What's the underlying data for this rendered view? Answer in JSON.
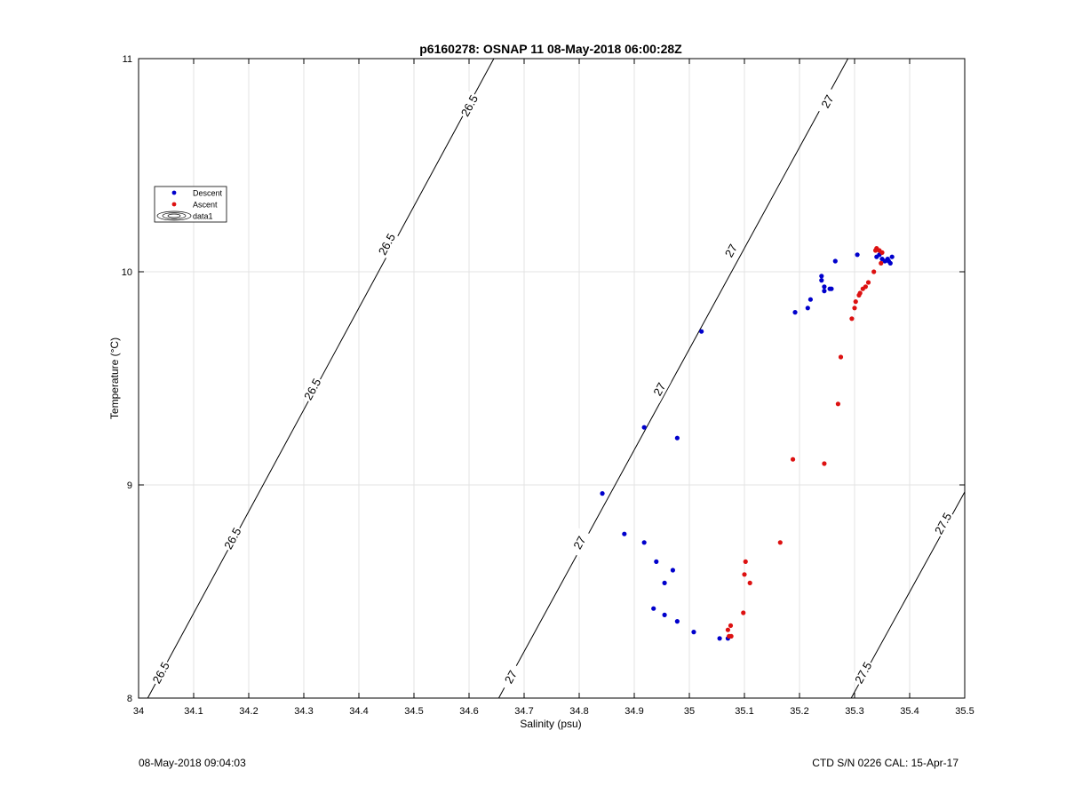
{
  "chart_data": {
    "type": "scatter",
    "title": "p6160278: OSNAP 11 08-May-2018 06:00:28Z",
    "xlabel": "Salinity (psu)",
    "ylabel": "Temperature (°C)",
    "xlim": [
      34,
      35.5
    ],
    "ylim": [
      8,
      11
    ],
    "xticks": [
      "34",
      "34.1",
      "34.2",
      "34.3",
      "34.4",
      "34.5",
      "34.6",
      "34.7",
      "34.8",
      "34.9",
      "35",
      "35.1",
      "35.2",
      "35.3",
      "35.4",
      "35.5"
    ],
    "yticks": [
      "8",
      "9",
      "10",
      "11"
    ],
    "grid": true,
    "legend_position": "top-left",
    "legend": [
      {
        "label": "Descent",
        "marker": "dot",
        "color": "#0000cc"
      },
      {
        "label": "Ascent",
        "marker": "dot",
        "color": "#dd1111"
      },
      {
        "label": "data1",
        "marker": "contour"
      }
    ],
    "series": [
      {
        "name": "Descent",
        "color": "#0000cc",
        "points": [
          [
            34.842,
            8.96
          ],
          [
            34.882,
            8.77
          ],
          [
            34.918,
            8.73
          ],
          [
            34.918,
            9.27
          ],
          [
            34.94,
            8.64
          ],
          [
            34.955,
            8.54
          ],
          [
            34.97,
            8.6
          ],
          [
            34.978,
            9.22
          ],
          [
            34.935,
            8.42
          ],
          [
            34.955,
            8.39
          ],
          [
            34.978,
            8.36
          ],
          [
            35.008,
            8.31
          ],
          [
            35.022,
            9.72
          ],
          [
            35.055,
            8.28
          ],
          [
            35.07,
            8.28
          ],
          [
            35.192,
            9.81
          ],
          [
            35.215,
            9.83
          ],
          [
            35.22,
            9.87
          ],
          [
            35.24,
            9.96
          ],
          [
            35.24,
            9.98
          ],
          [
            35.245,
            9.93
          ],
          [
            35.255,
            9.92
          ],
          [
            35.258,
            9.92
          ],
          [
            35.245,
            9.91
          ],
          [
            35.265,
            10.05
          ],
          [
            35.305,
            10.08
          ],
          [
            35.34,
            10.07
          ],
          [
            35.35,
            10.06
          ],
          [
            35.355,
            10.05
          ],
          [
            35.36,
            10.06
          ],
          [
            35.365,
            10.04
          ],
          [
            35.368,
            10.07
          ],
          [
            35.345,
            10.08
          ],
          [
            35.362,
            10.05
          ]
        ]
      },
      {
        "name": "Ascent",
        "color": "#dd1111",
        "points": [
          [
            35.188,
            9.12
          ],
          [
            35.245,
            9.1
          ],
          [
            35.27,
            9.38
          ],
          [
            35.275,
            9.6
          ],
          [
            35.295,
            9.78
          ],
          [
            35.3,
            9.83
          ],
          [
            35.302,
            9.86
          ],
          [
            35.308,
            9.89
          ],
          [
            35.31,
            9.9
          ],
          [
            35.315,
            9.92
          ],
          [
            35.32,
            9.93
          ],
          [
            35.325,
            9.95
          ],
          [
            35.335,
            10.0
          ],
          [
            35.34,
            10.11
          ],
          [
            35.345,
            10.1
          ],
          [
            35.35,
            10.09
          ],
          [
            35.348,
            10.04
          ],
          [
            35.338,
            10.1
          ],
          [
            35.165,
            8.73
          ],
          [
            35.102,
            8.64
          ],
          [
            35.1,
            8.58
          ],
          [
            35.11,
            8.54
          ],
          [
            35.098,
            8.4
          ],
          [
            35.075,
            8.34
          ],
          [
            35.07,
            8.32
          ],
          [
            35.072,
            8.29
          ],
          [
            35.076,
            8.29
          ]
        ]
      }
    ],
    "isopycnals": [
      {
        "label": "26.5",
        "points": [
          [
            34.0166,
            8.0
          ],
          [
            34.645,
            11.0
          ]
        ],
        "label_at": [
          [
            34.04,
            8.12
          ],
          [
            34.17,
            8.75
          ],
          [
            34.315,
            9.45
          ],
          [
            34.45,
            10.13
          ],
          [
            34.6,
            10.78
          ]
        ]
      },
      {
        "label": "27",
        "points": [
          [
            34.6539,
            8.0
          ],
          [
            35.288,
            11.0
          ]
        ],
        "label_at": [
          [
            34.675,
            8.1
          ],
          [
            34.8,
            8.73
          ],
          [
            34.945,
            9.45
          ],
          [
            35.075,
            10.1
          ],
          [
            35.25,
            10.8
          ]
        ]
      },
      {
        "label": "27.5",
        "points": [
          [
            35.2939,
            8.0
          ],
          [
            35.5,
            8.967
          ]
        ],
        "label_at": [
          [
            35.315,
            8.12
          ],
          [
            35.46,
            8.82
          ]
        ]
      }
    ]
  },
  "footer": {
    "left": "08-May-2018 09:04:03",
    "right": "CTD S/N 0226  CAL: 15-Apr-17"
  }
}
